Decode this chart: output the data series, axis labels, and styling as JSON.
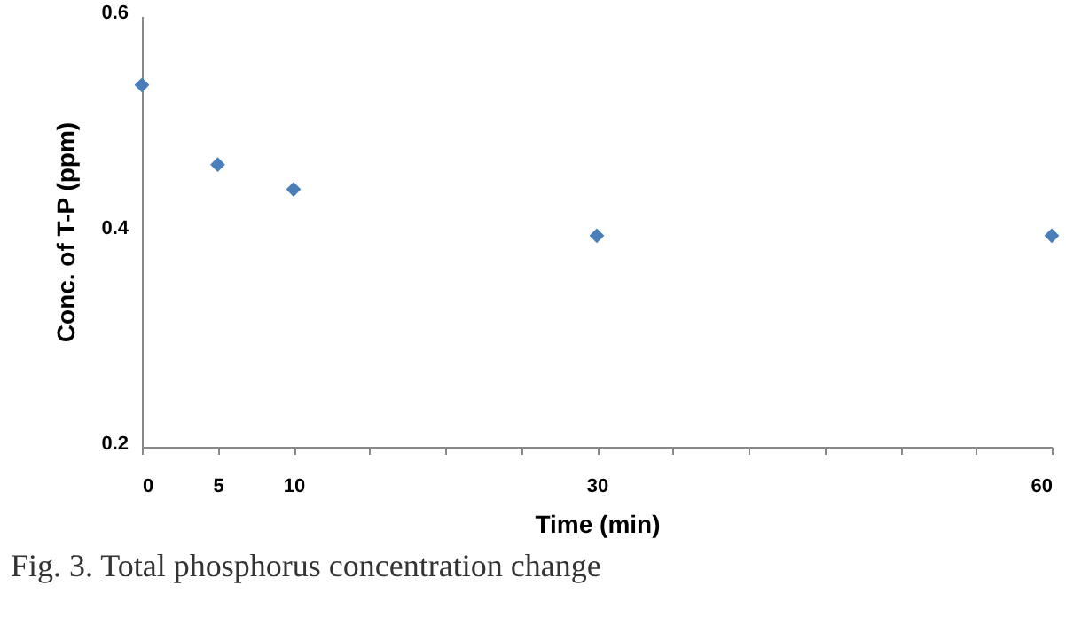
{
  "chart_data": {
    "type": "scatter",
    "xlabel": "Time (min)",
    "ylabel": "Conc.  of T-P (ppm)",
    "x": [
      0,
      5,
      10,
      30,
      60
    ],
    "series": [
      {
        "color": "#4a7ebb",
        "values": [
          0.536,
          0.462,
          0.439,
          0.396,
          0.396
        ]
      }
    ],
    "marker": "diamond",
    "grid": false,
    "xlim": [
      0,
      60
    ],
    "xticks": [
      0,
      5,
      10,
      {
        "value": 15,
        "label": null
      },
      {
        "value": 20,
        "label": null
      },
      {
        "value": 25,
        "label": null
      },
      30,
      {
        "value": 35,
        "label": null
      },
      {
        "value": 40,
        "label": null
      },
      {
        "value": 45,
        "label": null
      },
      {
        "value": 50,
        "label": null
      },
      {
        "value": 55,
        "label": null
      },
      60
    ],
    "ylim": [
      0.2,
      0.6
    ],
    "yticks": [
      0.2,
      0.4,
      0.6
    ],
    "annotations": [
      "Fig. 3. Total phosphorus concentration change"
    ]
  }
}
